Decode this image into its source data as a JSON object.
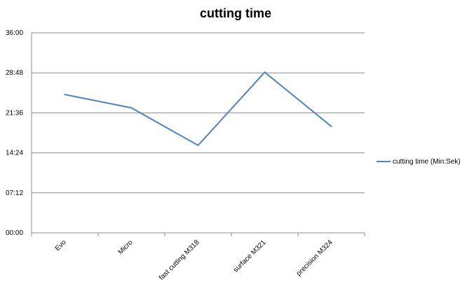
{
  "chart_data": {
    "type": "line",
    "title": "cutting time",
    "xlabel": "",
    "ylabel": "",
    "categories": [
      "Evo",
      "Micro",
      "fast cutting  M318",
      "surface M321",
      "precision  M324"
    ],
    "series": [
      {
        "name": "cutting time (Min:Sek)",
        "values": [
          "24:54",
          "22:30",
          "15:45",
          "28:55",
          "19:10"
        ],
        "color": "#4f81bd"
      }
    ],
    "y_ticks": [
      "00:00",
      "07:12",
      "14:24",
      "21:36",
      "28:48",
      "36:00"
    ],
    "ylim": [
      "00:00",
      "36:00"
    ],
    "grid": true,
    "legend": "right",
    "gridline_color": "#8c8c8c"
  }
}
